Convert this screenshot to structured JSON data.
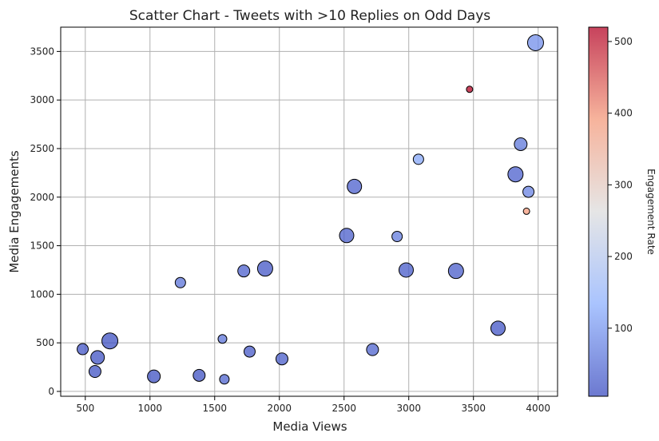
{
  "chart_data": {
    "type": "scatter",
    "title": "Scatter Chart - Tweets with >10 Replies on Odd Days",
    "xlabel": "Media Views",
    "ylabel": "Media Engagements",
    "xlim": [
      310,
      4150
    ],
    "ylim": [
      -50,
      3750
    ],
    "xticks": [
      500,
      1000,
      1500,
      2000,
      2500,
      3000,
      3500,
      4000
    ],
    "yticks": [
      0,
      500,
      1000,
      1500,
      2000,
      2500,
      3000,
      3500
    ],
    "grid": true,
    "colorbar": {
      "label": "Engagement Rate",
      "range": [
        5,
        520
      ],
      "ticks": [
        100,
        200,
        300,
        400,
        500
      ],
      "colormap": "coolwarm",
      "colors": [
        "#3b4cc0",
        "#8db0fe",
        "#dddddd",
        "#f49a7b",
        "#b40426"
      ]
    },
    "points": [
      {
        "x": 480,
        "y": 435,
        "rate": 15,
        "size": 14
      },
      {
        "x": 690,
        "y": 520,
        "rate": 10,
        "size": 20
      },
      {
        "x": 595,
        "y": 350,
        "rate": 12,
        "size": 17
      },
      {
        "x": 575,
        "y": 205,
        "rate": 12,
        "size": 15
      },
      {
        "x": 1030,
        "y": 155,
        "rate": 10,
        "size": 16
      },
      {
        "x": 1235,
        "y": 1120,
        "rate": 55,
        "size": 13
      },
      {
        "x": 1380,
        "y": 165,
        "rate": 10,
        "size": 15
      },
      {
        "x": 1560,
        "y": 540,
        "rate": 55,
        "size": 11
      },
      {
        "x": 1575,
        "y": 125,
        "rate": 35,
        "size": 12
      },
      {
        "x": 1725,
        "y": 1240,
        "rate": 30,
        "size": 15
      },
      {
        "x": 1770,
        "y": 410,
        "rate": 20,
        "size": 14
      },
      {
        "x": 1890,
        "y": 1265,
        "rate": 18,
        "size": 19
      },
      {
        "x": 2020,
        "y": 335,
        "rate": 25,
        "size": 15
      },
      {
        "x": 2520,
        "y": 1605,
        "rate": 28,
        "size": 18
      },
      {
        "x": 2580,
        "y": 2110,
        "rate": 30,
        "size": 18
      },
      {
        "x": 2720,
        "y": 430,
        "rate": 35,
        "size": 15
      },
      {
        "x": 2910,
        "y": 1595,
        "rate": 65,
        "size": 13
      },
      {
        "x": 2980,
        "y": 1250,
        "rate": 22,
        "size": 18
      },
      {
        "x": 3075,
        "y": 2390,
        "rate": 120,
        "size": 13
      },
      {
        "x": 3365,
        "y": 1240,
        "rate": 25,
        "size": 19
      },
      {
        "x": 3470,
        "y": 3110,
        "rate": 520,
        "size": 8
      },
      {
        "x": 3690,
        "y": 650,
        "rate": 15,
        "size": 18
      },
      {
        "x": 3825,
        "y": 2235,
        "rate": 30,
        "size": 19
      },
      {
        "x": 3865,
        "y": 2545,
        "rate": 60,
        "size": 16
      },
      {
        "x": 3910,
        "y": 1855,
        "rate": 390,
        "size": 8
      },
      {
        "x": 3925,
        "y": 2055,
        "rate": 75,
        "size": 14
      },
      {
        "x": 3980,
        "y": 3590,
        "rate": 90,
        "size": 20
      }
    ]
  }
}
